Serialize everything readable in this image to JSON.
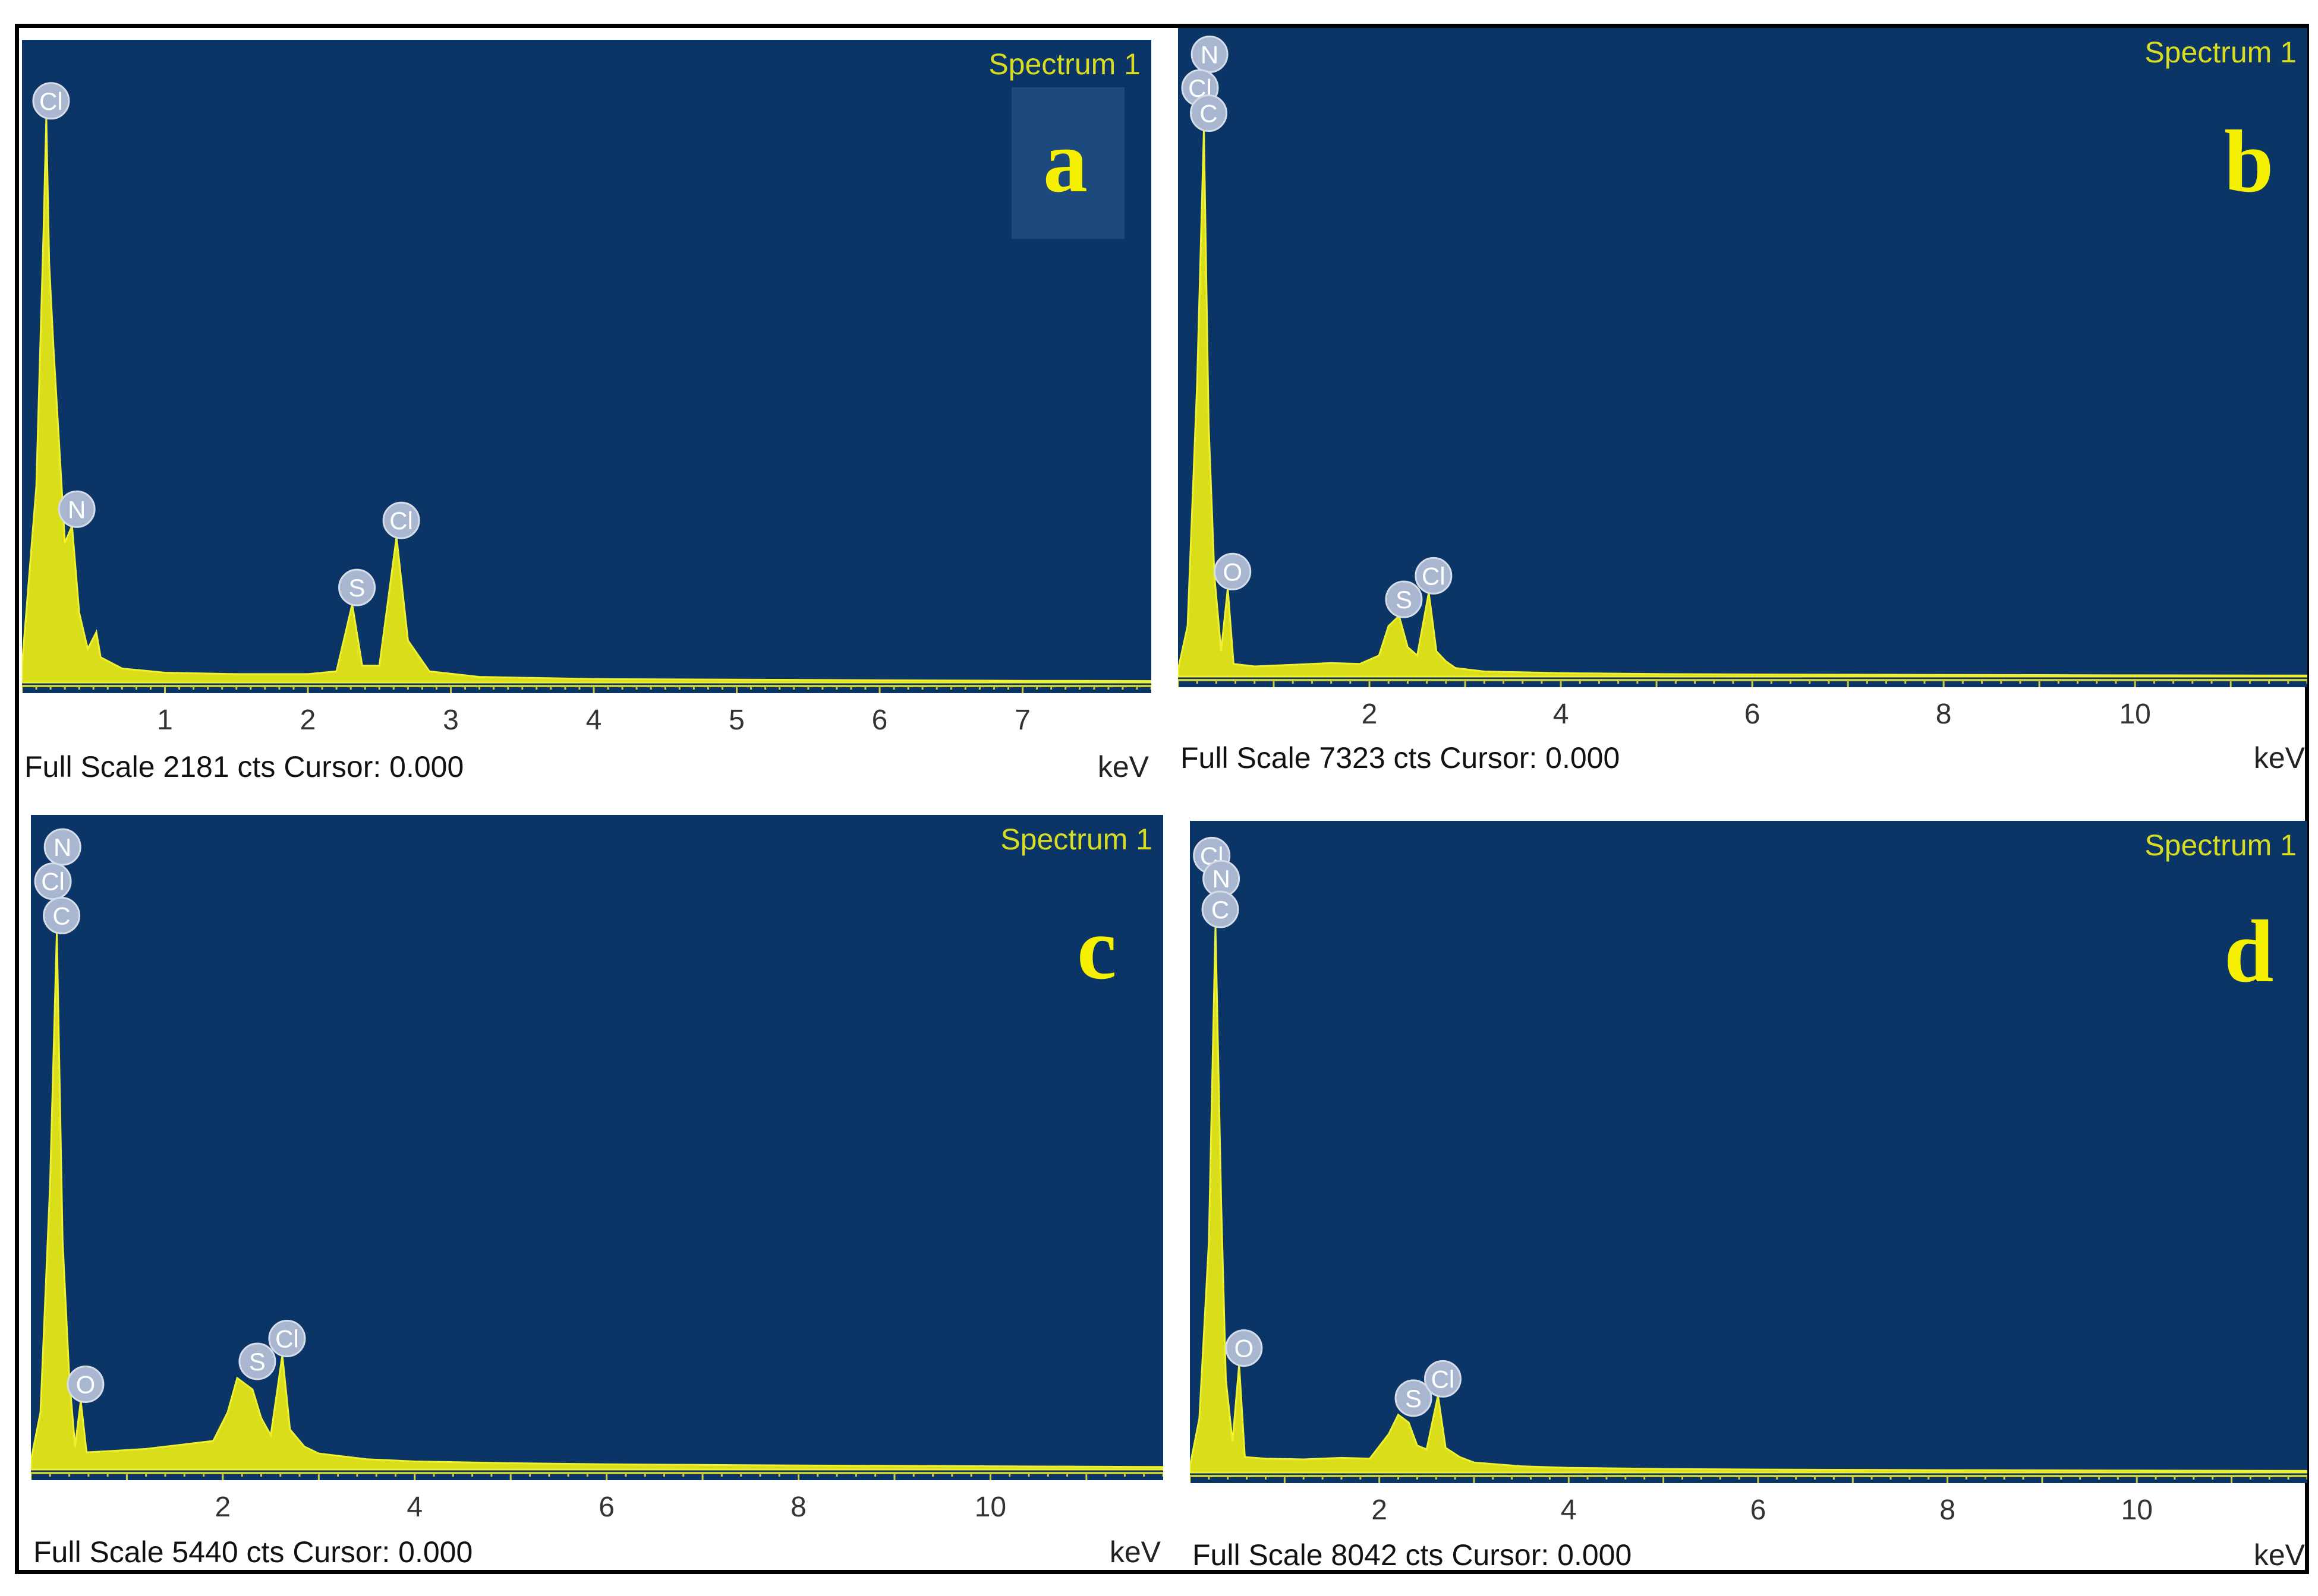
{
  "chart_data": [
    {
      "type": "line",
      "panel_letter": "a",
      "spectrum_label": "Spectrum 1",
      "full_scale": "Full Scale 2181 cts Cursor: 0.000",
      "xlabel": "keV",
      "xlim": [
        0,
        7.9
      ],
      "ylim": [
        0,
        2181
      ],
      "xticks": [
        "1",
        "2",
        "3",
        "4",
        "5",
        "6",
        "7"
      ],
      "peaks": [
        {
          "element": "Cl",
          "energy": 0.17,
          "counts": 2020
        },
        {
          "element": "N",
          "energy": 0.35,
          "counts": 560
        },
        {
          "element": "S",
          "energy": 2.31,
          "counts": 280
        },
        {
          "element": "Cl",
          "energy": 2.62,
          "counts": 520
        }
      ],
      "series": [
        {
          "values": [
            [
              0.0,
              60
            ],
            [
              0.1,
              700
            ],
            [
              0.15,
              1600
            ],
            [
              0.17,
              2020
            ],
            [
              0.19,
              1500
            ],
            [
              0.22,
              1200
            ],
            [
              0.3,
              500
            ],
            [
              0.35,
              560
            ],
            [
              0.4,
              250
            ],
            [
              0.46,
              120
            ],
            [
              0.52,
              180
            ],
            [
              0.55,
              90
            ],
            [
              0.7,
              50
            ],
            [
              1.0,
              35
            ],
            [
              1.5,
              30
            ],
            [
              2.0,
              30
            ],
            [
              2.2,
              40
            ],
            [
              2.31,
              280
            ],
            [
              2.38,
              60
            ],
            [
              2.5,
              60
            ],
            [
              2.62,
              520
            ],
            [
              2.7,
              150
            ],
            [
              2.85,
              40
            ],
            [
              3.2,
              20
            ],
            [
              4.0,
              12
            ],
            [
              5.0,
              10
            ],
            [
              6.0,
              8
            ],
            [
              7.0,
              6
            ],
            [
              7.9,
              5
            ]
          ]
        }
      ]
    },
    {
      "type": "line",
      "panel_letter": "b",
      "spectrum_label": "Spectrum 1",
      "full_scale": "Full Scale 7323 cts Cursor: 0.000",
      "xlabel": "keV",
      "xlim": [
        0,
        11.8
      ],
      "ylim": [
        0,
        7323
      ],
      "xticks": [
        "2",
        "4",
        "6",
        "8",
        "10"
      ],
      "peaks": [
        {
          "element": "N",
          "energy": 0.28,
          "counts": 7200
        },
        {
          "element": "Cl",
          "energy": 0.18,
          "counts": 6800
        },
        {
          "element": "C",
          "energy": 0.27,
          "counts": 6500
        },
        {
          "element": "O",
          "energy": 0.52,
          "counts": 1050
        },
        {
          "element": "S",
          "energy": 2.31,
          "counts": 720
        },
        {
          "element": "Cl",
          "energy": 2.62,
          "counts": 1000
        }
      ],
      "series": [
        {
          "values": [
            [
              0.0,
              80
            ],
            [
              0.1,
              600
            ],
            [
              0.2,
              3500
            ],
            [
              0.27,
              6500
            ],
            [
              0.32,
              3000
            ],
            [
              0.38,
              1200
            ],
            [
              0.45,
              300
            ],
            [
              0.52,
              1050
            ],
            [
              0.58,
              150
            ],
            [
              0.8,
              120
            ],
            [
              1.2,
              140
            ],
            [
              1.6,
              160
            ],
            [
              1.9,
              150
            ],
            [
              2.1,
              250
            ],
            [
              2.2,
              600
            ],
            [
              2.31,
              720
            ],
            [
              2.4,
              350
            ],
            [
              2.5,
              250
            ],
            [
              2.62,
              1000
            ],
            [
              2.7,
              300
            ],
            [
              2.8,
              180
            ],
            [
              2.9,
              100
            ],
            [
              3.2,
              60
            ],
            [
              4.0,
              40
            ],
            [
              5.0,
              30
            ],
            [
              6.0,
              25
            ],
            [
              8.0,
              20
            ],
            [
              10.0,
              15
            ],
            [
              11.8,
              12
            ]
          ]
        }
      ]
    },
    {
      "type": "line",
      "panel_letter": "c",
      "spectrum_label": "Spectrum 1",
      "full_scale": "Full Scale 5440 cts Cursor: 0.000",
      "xlabel": "keV",
      "xlim": [
        0,
        11.8
      ],
      "ylim": [
        0,
        5440
      ],
      "xticks": [
        "2",
        "4",
        "6",
        "8",
        "10"
      ],
      "peaks": [
        {
          "element": "N",
          "energy": 0.28,
          "counts": 5300
        },
        {
          "element": "Cl",
          "energy": 0.18,
          "counts": 5000
        },
        {
          "element": "C",
          "energy": 0.27,
          "counts": 4700
        },
        {
          "element": "O",
          "energy": 0.52,
          "counts": 600
        },
        {
          "element": "S",
          "energy": 2.31,
          "counts": 800
        },
        {
          "element": "Cl",
          "energy": 2.62,
          "counts": 1000
        }
      ],
      "series": [
        {
          "values": [
            [
              0.0,
              80
            ],
            [
              0.1,
              500
            ],
            [
              0.2,
              2500
            ],
            [
              0.27,
              4700
            ],
            [
              0.33,
              2000
            ],
            [
              0.4,
              800
            ],
            [
              0.46,
              200
            ],
            [
              0.52,
              600
            ],
            [
              0.58,
              150
            ],
            [
              0.8,
              160
            ],
            [
              1.2,
              180
            ],
            [
              1.6,
              220
            ],
            [
              1.9,
              250
            ],
            [
              2.05,
              500
            ],
            [
              2.15,
              800
            ],
            [
              2.31,
              700
            ],
            [
              2.4,
              450
            ],
            [
              2.5,
              300
            ],
            [
              2.62,
              1000
            ],
            [
              2.7,
              350
            ],
            [
              2.85,
              200
            ],
            [
              3.0,
              140
            ],
            [
              3.5,
              90
            ],
            [
              4.0,
              70
            ],
            [
              5.0,
              55
            ],
            [
              6.0,
              45
            ],
            [
              8.0,
              35
            ],
            [
              10.0,
              28
            ],
            [
              11.8,
              22
            ]
          ]
        }
      ]
    },
    {
      "type": "line",
      "panel_letter": "d",
      "spectrum_label": "Spectrum 1",
      "full_scale": "Full Scale 8042 cts Cursor: 0.000",
      "xlabel": "keV",
      "xlim": [
        0,
        11.8
      ],
      "ylim": [
        0,
        8042
      ],
      "xticks": [
        "2",
        "4",
        "6",
        "8",
        "10"
      ],
      "peaks": [
        {
          "element": "Cl",
          "energy": 0.18,
          "counts": 7800
        },
        {
          "element": "N",
          "energy": 0.28,
          "counts": 7500
        },
        {
          "element": "C",
          "energy": 0.27,
          "counts": 7100
        },
        {
          "element": "O",
          "energy": 0.52,
          "counts": 1400
        },
        {
          "element": "S",
          "energy": 2.31,
          "counts": 750
        },
        {
          "element": "Cl",
          "energy": 2.62,
          "counts": 1000
        }
      ],
      "series": [
        {
          "values": [
            [
              0.0,
              80
            ],
            [
              0.1,
              700
            ],
            [
              0.2,
              3000
            ],
            [
              0.27,
              7100
            ],
            [
              0.33,
              3500
            ],
            [
              0.38,
              1200
            ],
            [
              0.45,
              400
            ],
            [
              0.52,
              1400
            ],
            [
              0.58,
              200
            ],
            [
              0.8,
              180
            ],
            [
              1.2,
              170
            ],
            [
              1.6,
              190
            ],
            [
              1.9,
              180
            ],
            [
              2.1,
              500
            ],
            [
              2.2,
              750
            ],
            [
              2.31,
              650
            ],
            [
              2.4,
              350
            ],
            [
              2.5,
              300
            ],
            [
              2.62,
              1000
            ],
            [
              2.7,
              320
            ],
            [
              2.85,
              200
            ],
            [
              3.0,
              130
            ],
            [
              3.5,
              80
            ],
            [
              4.0,
              60
            ],
            [
              5.0,
              45
            ],
            [
              6.0,
              38
            ],
            [
              8.0,
              30
            ],
            [
              10.0,
              25
            ],
            [
              11.8,
              20
            ]
          ]
        }
      ]
    }
  ]
}
